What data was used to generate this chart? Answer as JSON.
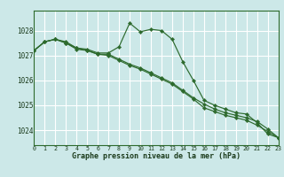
{
  "x": [
    0,
    1,
    2,
    3,
    4,
    5,
    6,
    7,
    8,
    9,
    10,
    11,
    12,
    13,
    14,
    15,
    16,
    17,
    18,
    19,
    20,
    21,
    22,
    23
  ],
  "line1": [
    1027.2,
    1027.55,
    1027.65,
    1027.55,
    1027.3,
    1027.25,
    1027.1,
    1027.1,
    1027.35,
    1028.3,
    1027.95,
    1028.05,
    1028.0,
    1027.65,
    1026.75,
    1026.0,
    1025.2,
    1025.0,
    1024.85,
    1024.7,
    1024.65,
    1024.3,
    1023.85,
    1023.7
  ],
  "line2": [
    1027.2,
    1027.55,
    1027.65,
    1027.5,
    1027.3,
    1027.2,
    1027.05,
    1027.05,
    1026.85,
    1026.65,
    1026.5,
    1026.3,
    1026.1,
    1025.9,
    1025.6,
    1025.3,
    1025.05,
    1024.85,
    1024.7,
    1024.6,
    1024.5,
    1024.35,
    1024.05,
    1023.7
  ],
  "line3": [
    1027.2,
    1027.55,
    1027.65,
    1027.5,
    1027.25,
    1027.2,
    1027.05,
    1027.0,
    1026.8,
    1026.6,
    1026.45,
    1026.25,
    1026.05,
    1025.85,
    1025.55,
    1025.25,
    1024.9,
    1024.75,
    1024.6,
    1024.5,
    1024.4,
    1024.2,
    1023.95,
    1023.7
  ],
  "line_color": "#2d6a2d",
  "bg_color": "#cce8e8",
  "grid_color": "#ffffff",
  "grid_minor_color": "#e8f4f4",
  "ylabel_ticks": [
    1024,
    1025,
    1026,
    1027,
    1028
  ],
  "xlabel": "Graphe pression niveau de la mer (hPa)",
  "ylim": [
    1023.4,
    1028.8
  ],
  "xlim": [
    0,
    23
  ]
}
